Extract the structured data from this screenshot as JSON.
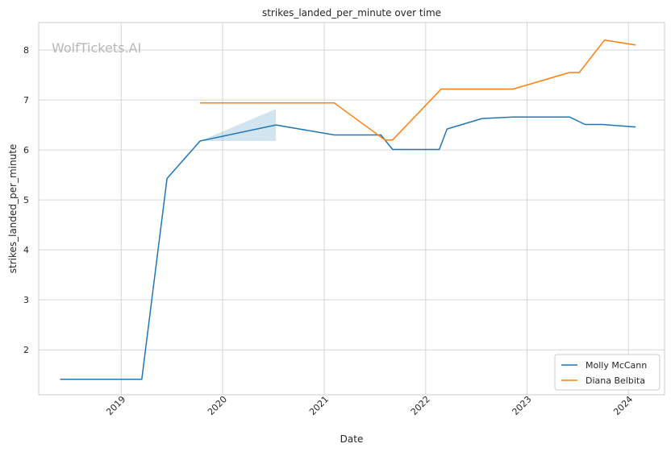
{
  "chart_data": {
    "type": "line",
    "title": "strikes_landed_per_minute over time",
    "xlabel": "Date",
    "ylabel": "strikes_landed_per_minute",
    "watermark": "WolfTickets.AI",
    "xlim": [
      "2018-03-10",
      "2024-05-10"
    ],
    "ylim": [
      1.1,
      8.55
    ],
    "x_ticks": [
      "2019-01-01",
      "2020-01-01",
      "2021-01-01",
      "2022-01-01",
      "2023-01-01",
      "2024-01-01"
    ],
    "x_tick_labels": [
      "2019",
      "2020",
      "2021",
      "2022",
      "2023",
      "2024"
    ],
    "y_ticks": [
      2,
      3,
      4,
      5,
      6,
      7,
      8
    ],
    "y_tick_labels": [
      "2",
      "3",
      "4",
      "5",
      "6",
      "7",
      "8"
    ],
    "grid": true,
    "legend_position": "bottom-right",
    "series": [
      {
        "name": "Molly McCann",
        "color": "#1f77b4",
        "points": [
          [
            "2018-05-26",
            1.41
          ],
          [
            "2019-03-16",
            1.41
          ],
          [
            "2019-06-15",
            5.43
          ],
          [
            "2019-10-12",
            6.18
          ],
          [
            "2020-07-11",
            6.5
          ],
          [
            "2021-02-06",
            6.3
          ],
          [
            "2021-07-24",
            6.3
          ],
          [
            "2021-09-04",
            6.01
          ],
          [
            "2022-02-19",
            6.01
          ],
          [
            "2022-03-19",
            6.42
          ],
          [
            "2022-07-23",
            6.63
          ],
          [
            "2022-11-12",
            6.66
          ],
          [
            "2023-06-03",
            6.66
          ],
          [
            "2023-07-29",
            6.51
          ],
          [
            "2023-09-30",
            6.51
          ],
          [
            "2024-01-27",
            6.46
          ]
        ],
        "band": [
          [
            "2019-10-12",
            6.18,
            6.18
          ],
          [
            "2020-07-11",
            6.18,
            6.82
          ]
        ]
      },
      {
        "name": "Diana Belbita",
        "color": "#ff7f0e",
        "points": [
          [
            "2019-10-12",
            6.94
          ],
          [
            "2021-02-06",
            6.94
          ],
          [
            "2021-08-07",
            6.2
          ],
          [
            "2021-09-04",
            6.2
          ],
          [
            "2022-02-26",
            7.22
          ],
          [
            "2022-11-12",
            7.22
          ],
          [
            "2023-06-03",
            7.55
          ],
          [
            "2023-07-08",
            7.55
          ],
          [
            "2023-10-07",
            8.2
          ],
          [
            "2024-01-27",
            8.1
          ]
        ]
      }
    ]
  }
}
